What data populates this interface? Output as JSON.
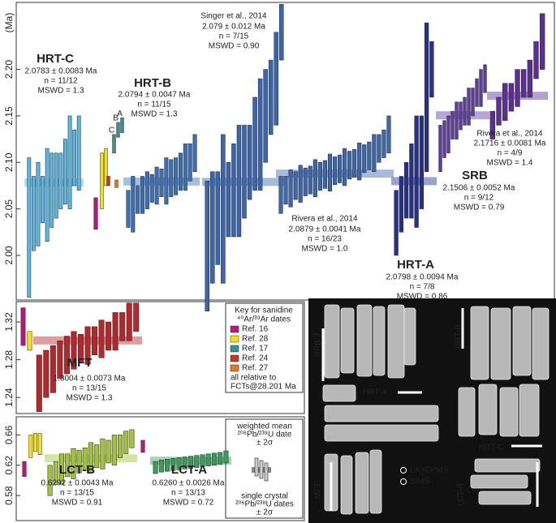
{
  "chart_data": [
    {
      "type": "errorbar",
      "ylabel": "(Ma)",
      "ylim": [
        1.952,
        2.272
      ],
      "yticks": [
        {
          "value": 2.0,
          "label": "2.00"
        },
        2.05,
        {
          "value": 2.1,
          "label": "2.10"
        },
        2.15,
        {
          "value": 2.2,
          "label": "2.20"
        }
      ],
      "series": [
        {
          "name": "HRT-C",
          "color": "#5bb5e3",
          "mean": 2.0783,
          "annotation": [
            "2.0783 ± 0.0083 Ma",
            "n = 11/12",
            "MSWD = 1.3"
          ],
          "values": [
            2.03,
            2.045,
            2.055,
            2.06,
            2.065,
            2.07,
            2.075,
            2.08,
            2.09,
            2.1,
            2.105,
            2.11
          ],
          "errors": [
            0.075,
            0.04,
            0.045,
            0.025,
            0.05,
            0.04,
            0.035,
            0.03,
            0.035,
            0.05,
            0.03,
            0.04
          ]
        },
        {
          "color": "#b5177f",
          "values": [
            2.045
          ],
          "errors": [
            0.017
          ]
        },
        {
          "color": "#f3e01a",
          "values": [
            2.08,
            2.095
          ],
          "errors": [
            0.03,
            0.02
          ]
        },
        {
          "color": "#3e8f8b",
          "values": [
            2.12,
            2.135,
            2.14
          ],
          "errors": [
            0.01,
            0.008,
            0.008
          ],
          "point_labels": [
            "C",
            "B",
            "A"
          ]
        },
        {
          "color": "#c0392b",
          "values": [
            2.08
          ],
          "errors": [
            0.005
          ]
        },
        {
          "color": "#e07a23",
          "values": [
            2.077
          ],
          "errors": [
            0.004
          ]
        },
        {
          "name": "HRT-B",
          "color": "#3d6fb4",
          "mean": 2.0794,
          "annotation": [
            "2.0794 ± 0.0047 Ma",
            "n = 11/15",
            "MSWD = 1.3"
          ],
          "values": [
            2.05,
            2.055,
            2.06,
            2.065,
            2.07,
            2.072,
            2.075,
            2.078,
            2.08,
            2.083,
            2.085,
            2.09,
            2.095,
            2.1,
            2.11
          ],
          "errors": [
            0.02,
            0.03,
            0.015,
            0.02,
            0.02,
            0.015,
            0.02,
            0.015,
            0.025,
            0.02,
            0.02,
            0.02,
            0.025,
            0.02,
            0.02
          ]
        },
        {
          "name": "Singer et al., 2014",
          "color": "#3a66b0",
          "mean": 2.079,
          "annotation": [
            "2.079 ± 0.012 Ma",
            "n = 7/15",
            "MSWD = 0.90"
          ],
          "values": [
            2.01,
            2.03,
            2.04,
            2.05,
            2.06,
            2.07,
            2.08,
            2.09,
            2.1,
            2.12,
            2.13,
            2.15,
            2.17,
            2.19,
            2.24
          ],
          "errors": [
            0.07,
            0.06,
            0.05,
            0.08,
            0.04,
            0.05,
            0.06,
            0.05,
            0.04,
            0.05,
            0.06,
            0.05,
            0.04,
            0.05,
            0.03
          ]
        },
        {
          "name": "Rivera et al., 2014",
          "color": "#3c67ad",
          "mean": 2.0879,
          "annotation": [
            "2.0879 ± 0.0041 Ma",
            "n = 16/23",
            "MSWD = 1.0"
          ],
          "values": [
            2.065,
            2.07,
            2.072,
            2.075,
            2.077,
            2.079,
            2.081,
            2.083,
            2.085,
            2.087,
            2.089,
            2.091,
            2.093,
            2.095,
            2.097,
            2.099,
            2.101,
            2.104,
            2.107,
            2.11,
            2.115,
            2.12,
            2.13
          ],
          "errors": [
            0.02,
            0.015,
            0.02,
            0.015,
            0.02,
            0.015,
            0.015,
            0.02,
            0.015,
            0.015,
            0.02,
            0.015,
            0.015,
            0.02,
            0.015,
            0.015,
            0.02,
            0.015,
            0.015,
            0.02,
            0.015,
            0.015,
            0.02
          ]
        },
        {
          "name": "HRT-A",
          "color": "#27318a",
          "mean": 2.0798,
          "annotation": [
            "2.0798 ± 0.0094 Ma",
            "n = 7/8",
            "MSWD = 0.86"
          ],
          "values": [
            2.035,
            2.055,
            2.07,
            2.08,
            2.09,
            2.1,
            2.17,
            2.2
          ],
          "errors": [
            0.035,
            0.03,
            0.03,
            0.04,
            0.06,
            0.05,
            0.08,
            0.03
          ]
        },
        {
          "name": "SRB",
          "color": "#5e3d9f",
          "mean": 2.1506,
          "annotation": [
            "2.1506 ± 0.0052 Ma",
            "n = 9/12",
            "MSWD = 0.79"
          ],
          "values": [
            2.115,
            2.125,
            2.13,
            2.14,
            2.145,
            2.15,
            2.155,
            2.16,
            2.165,
            2.175,
            2.18,
            2.19
          ],
          "errors": [
            0.025,
            0.02,
            0.02,
            0.015,
            0.02,
            0.015,
            0.015,
            0.02,
            0.015,
            0.015,
            0.02,
            0.015
          ]
        },
        {
          "name": "Rivera et al., 2014",
          "color": "#5b2f94",
          "mean": 2.1716,
          "annotation": [
            "2.1716 ± 0.0081 Ma",
            "n = 4/9",
            "MSWD = 1.4"
          ],
          "values": [
            2.14,
            2.155,
            2.165,
            2.17,
            2.18,
            2.185,
            2.19,
            2.21,
            2.23
          ],
          "errors": [
            0.015,
            0.015,
            0.02,
            0.015,
            0.02,
            0.015,
            0.02,
            0.02,
            0.03
          ]
        }
      ]
    },
    {
      "type": "errorbar",
      "ylim": [
        1.223,
        1.3415
      ],
      "yticks": [
        1.24,
        1.28,
        1.32
      ],
      "series": [
        {
          "color": "#b5177f",
          "values": [
            1.315
          ],
          "errors": [
            0.02
          ]
        },
        {
          "color": "#f3e01a",
          "values": [
            1.3
          ],
          "errors": [
            0.01
          ]
        },
        {
          "name": "MFT",
          "color": "#b3282d",
          "mean": 1.3004,
          "annotation": [
            "1.3004 ± 0.0073 Ma",
            "n = 13/15",
            "MSWD = 1.3"
          ],
          "values": [
            1.255,
            1.265,
            1.27,
            1.28,
            1.285,
            1.29,
            1.292,
            1.295,
            1.3,
            1.302,
            1.305,
            1.31,
            1.315,
            1.32,
            1.325
          ],
          "errors": [
            0.03,
            0.025,
            0.025,
            0.02,
            0.02,
            0.02,
            0.015,
            0.02,
            0.015,
            0.02,
            0.015,
            0.02,
            0.015,
            0.02,
            0.015
          ]
        }
      ]
    },
    {
      "type": "errorbar",
      "ylim": [
        0.547,
        0.684
      ],
      "yticks": [
        0.58,
        0.62,
        0.66
      ],
      "series": [
        {
          "color": "#b5177f",
          "values": [
            0.615
          ],
          "errors": [
            0.01
          ]
        },
        {
          "color": "#f3e01a",
          "values": [
            0.645,
            0.65,
            0.648
          ],
          "errors": [
            0.015,
            0.012,
            0.014
          ]
        },
        {
          "name": "LCT-B",
          "color": "#a3c13e",
          "mean": 0.6292,
          "annotation": [
            "0.6292 ± 0.0043 Ma",
            "n = 13/15",
            "MSWD = 0.91"
          ],
          "values": [
            0.6,
            0.61,
            0.615,
            0.62,
            0.622,
            0.625,
            0.628,
            0.63,
            0.632,
            0.635,
            0.638,
            0.64,
            0.645,
            0.65,
            0.655
          ],
          "errors": [
            0.02,
            0.015,
            0.02,
            0.015,
            0.02,
            0.015,
            0.015,
            0.02,
            0.015,
            0.02,
            0.015,
            0.02,
            0.015,
            0.015,
            0.012
          ]
        },
        {
          "color": "#b5177f",
          "values": [
            0.645
          ],
          "errors": [
            0.008
          ]
        },
        {
          "name": "LCT-A",
          "color": "#3e9a5c",
          "mean": 0.626,
          "annotation": [
            "0.6260 ± 0.0026 Ma",
            "n = 13/13",
            "MSWD = 0.72"
          ],
          "values": [
            0.617,
            0.619,
            0.62,
            0.621,
            0.622,
            0.623,
            0.624,
            0.625,
            0.626,
            0.627,
            0.628,
            0.629,
            0.631
          ],
          "errors": [
            0.008,
            0.008,
            0.008,
            0.008,
            0.008,
            0.008,
            0.008,
            0.008,
            0.008,
            0.008,
            0.008,
            0.008,
            0.008
          ]
        }
      ]
    }
  ],
  "key": {
    "title": [
      "Key for sanidine",
      "⁴⁰Ar/³⁹Ar dates"
    ],
    "entries": [
      {
        "label": "Ref. 16",
        "color": "#b5177f"
      },
      {
        "label": "Ref. 28",
        "color": "#f3e01a"
      },
      {
        "label": "Ref. 17",
        "color": "#3e8f8b"
      },
      {
        "label": "Ref. 24",
        "color": "#c0392b"
      },
      {
        "label": "Ref. 27",
        "color": "#e07a23"
      }
    ],
    "note": [
      "all relative to",
      "FCTs@28.201 Ma"
    ]
  },
  "symbol_key": {
    "mean": [
      "weighted mean",
      "²⁰⁶Pb/²³⁸U date",
      "± 2σ"
    ],
    "single": [
      "single crystal",
      "²⁰⁶Pb/²³⁸U dates",
      "± 2σ"
    ]
  },
  "image": {
    "samples": [
      "SRB-2",
      "HRT-A",
      "HRT-B",
      "HRT-C",
      "MFT",
      "LCT-B"
    ],
    "methods": [
      "LA-ICPMS",
      "SIMS"
    ]
  }
}
